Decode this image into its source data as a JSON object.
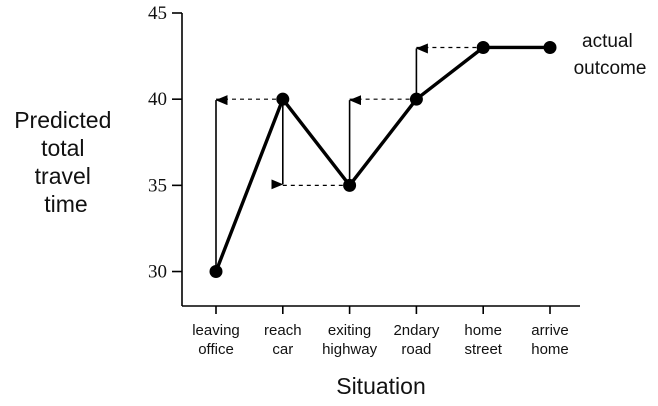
{
  "chart_data": {
    "type": "line",
    "xlabel": "Situation",
    "ylabel_lines": [
      "Predicted",
      "total",
      "travel",
      "time"
    ],
    "categories": [
      [
        "leaving",
        "office"
      ],
      [
        "reach",
        "car"
      ],
      [
        "exiting",
        "highway"
      ],
      [
        "2ndary",
        "road"
      ],
      [
        "home",
        "street"
      ],
      [
        "arrive",
        "home"
      ]
    ],
    "series": [
      {
        "values": [
          30,
          40,
          35,
          40,
          43,
          43
        ]
      }
    ],
    "ylim": [
      28,
      45
    ],
    "yticks": [
      30,
      35,
      40,
      45
    ],
    "grid": false,
    "line_color": "#000000",
    "annotation_lines": [
      "actual",
      "outcome"
    ],
    "arrows": [
      {
        "at": 0,
        "from": 30,
        "to": 40
      },
      {
        "at": 1,
        "from": 40,
        "to": 35
      },
      {
        "at": 2,
        "from": 35,
        "to": 40
      },
      {
        "at": 3,
        "from": 40,
        "to": 43
      }
    ]
  }
}
